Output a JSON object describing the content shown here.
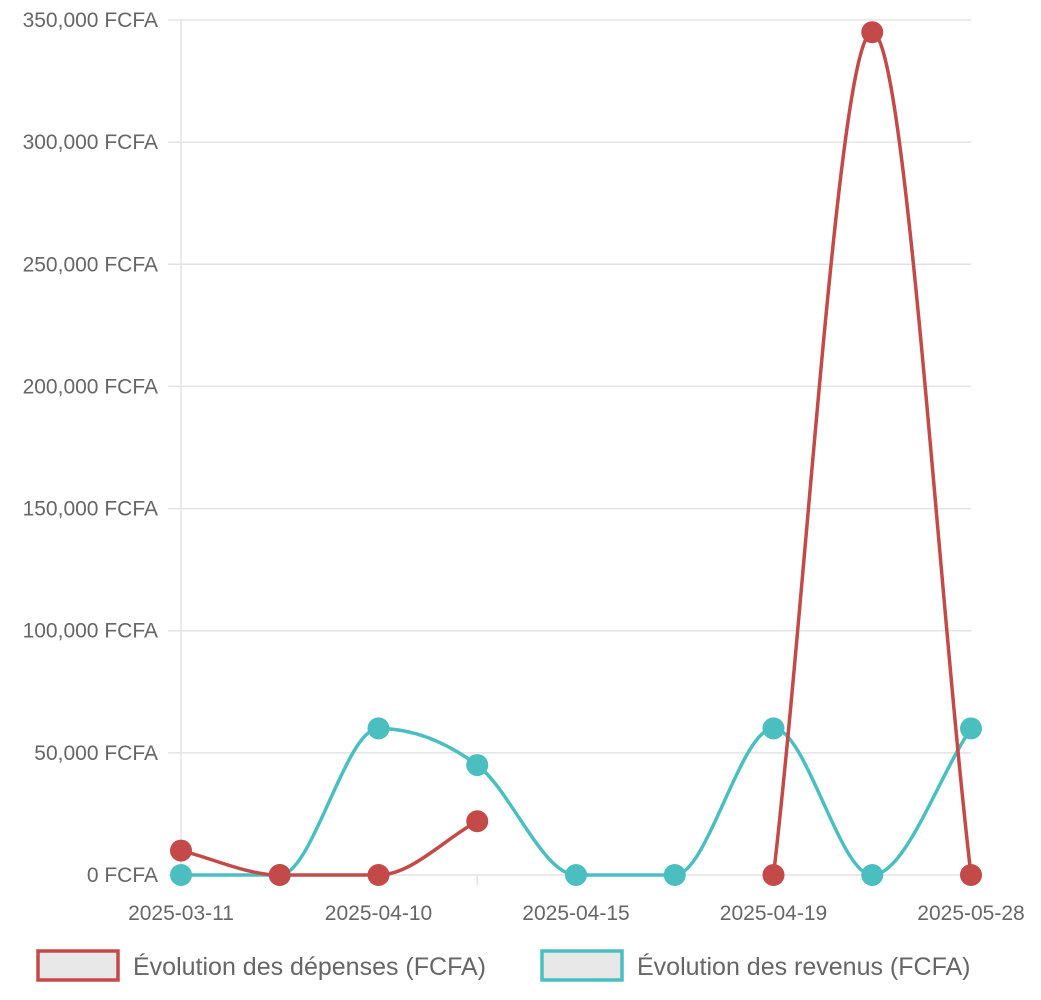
{
  "chart_data": {
    "type": "line",
    "x": [
      "2025-03-11",
      "",
      "2025-04-10",
      "",
      "2025-04-15",
      "",
      "2025-04-19",
      "",
      "2025-05-28"
    ],
    "x_tick_labels": [
      "2025-03-11",
      "2025-04-10",
      "2025-04-15",
      "2025-04-19",
      "2025-05-28"
    ],
    "y_tick_labels": [
      "0 FCFA",
      "50,000 FCFA",
      "100,000 FCFA",
      "150,000 FCFA",
      "200,000 FCFA",
      "250,000 FCFA",
      "300,000 FCFA",
      "350,000 FCFA"
    ],
    "ylim": [
      0,
      350000
    ],
    "y_tick_values": [
      0,
      50000,
      100000,
      150000,
      200000,
      250000,
      300000,
      350000
    ],
    "grid": true,
    "legend_position": "bottom",
    "series": [
      {
        "name": "Évolution des dépenses (FCFA)",
        "color": "#c44a4a",
        "segments": [
          [
            [
              0,
              10000
            ],
            [
              1,
              0
            ],
            [
              2,
              0
            ],
            [
              3,
              22000
            ]
          ],
          [
            [
              6,
              0
            ],
            [
              7,
              345000
            ],
            [
              8,
              0
            ]
          ]
        ]
      },
      {
        "name": "Évolution des revenus (FCFA)",
        "color": "#4bbfc0",
        "segments": [
          [
            [
              0,
              0
            ],
            [
              1,
              0
            ],
            [
              2,
              60000
            ],
            [
              3,
              45000
            ],
            [
              4,
              0
            ],
            [
              5,
              0
            ],
            [
              6,
              60000
            ],
            [
              7,
              0
            ],
            [
              8,
              60000
            ]
          ]
        ]
      }
    ]
  }
}
